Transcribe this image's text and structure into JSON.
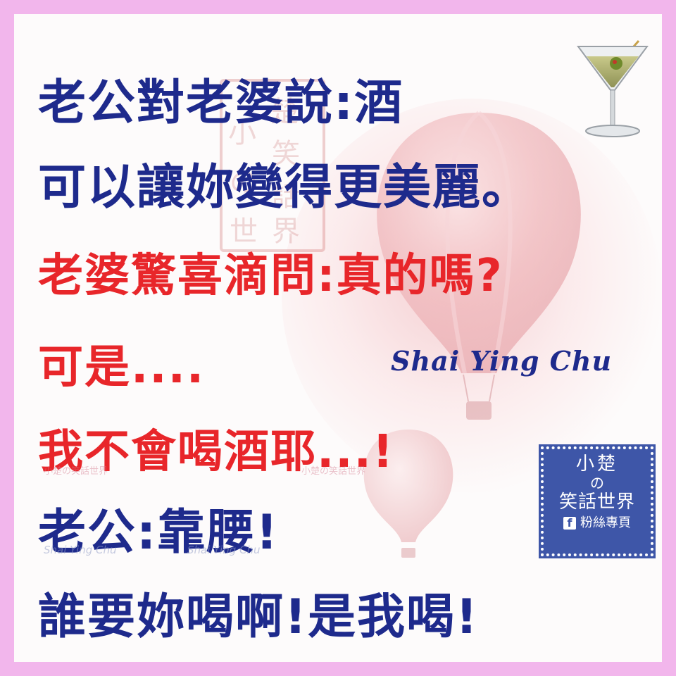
{
  "lines": [
    {
      "text": "老公對老婆說:酒",
      "color": "#1e2a8c"
    },
    {
      "text": "可以讓妳變得更美麗。",
      "color": "#1e2a8c"
    },
    {
      "text": "老婆驚喜滴問:真的嗎?",
      "color": "#e8262a"
    },
    {
      "text": "可是....",
      "color": "#e8262a"
    },
    {
      "text": "我不會喝酒耶...!",
      "color": "#e8262a"
    },
    {
      "text": "老公:靠腰!",
      "color": "#1e2a8c"
    },
    {
      "text": "誰要妳喝啊!是我喝!",
      "color": "#1e2a8c"
    }
  ],
  "signature": "Shai Ying Chu",
  "seal": {
    "chars": [
      "小",
      "楚",
      "の",
      "笑",
      "話",
      "世",
      "界"
    ]
  },
  "watermarks": {
    "cn_left": "小楚の笑話世界",
    "cn_right": "小楚の笑話世界",
    "en_left": "Shai Ying Chu",
    "en_right": "Shai Ying Chu"
  },
  "badge": {
    "line1": "小楚",
    "line2": "の",
    "line3": "笑話世界",
    "fb_glyph": "f",
    "line4": "粉絲專頁"
  },
  "icons": {
    "glass": "martini-glass-icon",
    "balloon": "hot-air-balloon-icon",
    "facebook": "facebook-icon"
  },
  "colors": {
    "background_frame": "#f2b6ec",
    "card": "#fdfbfb",
    "text_blue": "#1e2a8c",
    "text_red": "#e8262a",
    "badge": "#3e56a8"
  }
}
